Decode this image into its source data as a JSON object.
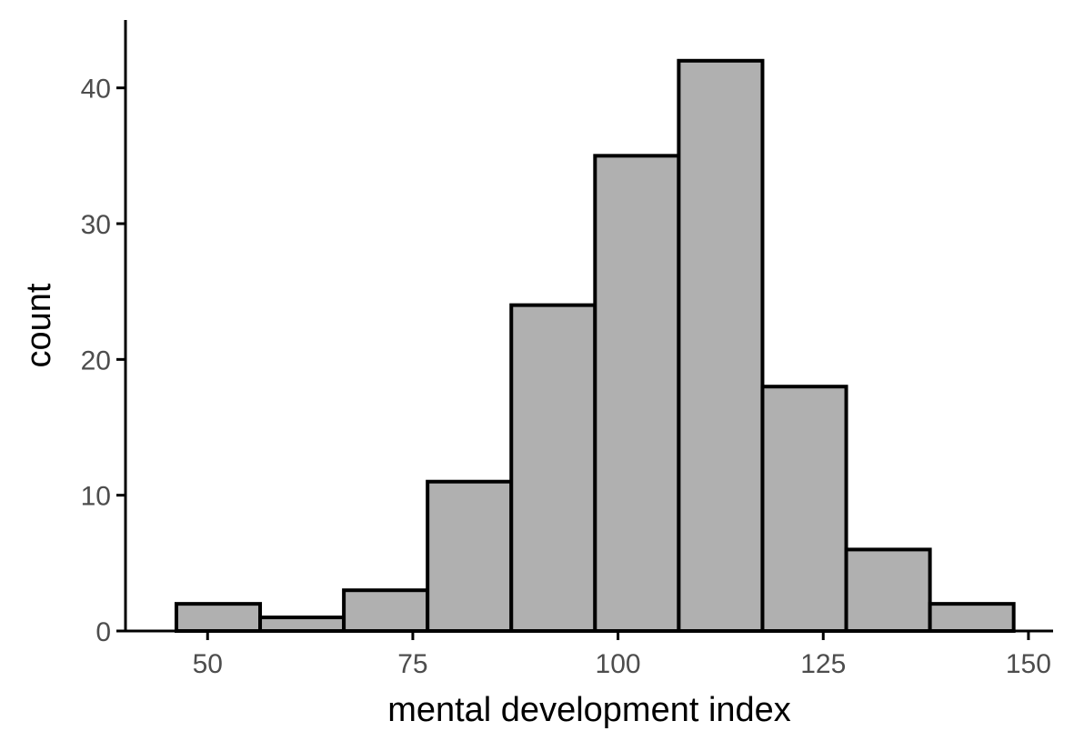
{
  "chart_data": {
    "type": "bar",
    "subtype": "histogram",
    "title": "",
    "xlabel": "mental development index",
    "ylabel": "count",
    "bins": [
      {
        "x0": 46.2,
        "x1": 56.4,
        "count": 2
      },
      {
        "x0": 56.4,
        "x1": 66.6,
        "count": 1
      },
      {
        "x0": 66.6,
        "x1": 76.8,
        "count": 3
      },
      {
        "x0": 76.8,
        "x1": 87.0,
        "count": 11
      },
      {
        "x0": 87.0,
        "x1": 97.2,
        "count": 24
      },
      {
        "x0": 97.2,
        "x1": 107.4,
        "count": 35
      },
      {
        "x0": 107.4,
        "x1": 117.6,
        "count": 42
      },
      {
        "x0": 117.6,
        "x1": 127.8,
        "count": 18
      },
      {
        "x0": 127.8,
        "x1": 138.0,
        "count": 6
      },
      {
        "x0": 138.0,
        "x1": 148.2,
        "count": 2
      }
    ],
    "xlim": [
      40,
      153
    ],
    "ylim": [
      0,
      45
    ],
    "xticks": [
      50,
      75,
      100,
      125,
      150
    ],
    "xtick_labels": [
      "50",
      "75",
      "100",
      "125",
      "150"
    ],
    "yticks": [
      0,
      10,
      20,
      30,
      40
    ],
    "ytick_labels": [
      "0",
      "10",
      "20",
      "30",
      "40"
    ],
    "grid": false,
    "legend": "none",
    "colors": {
      "bar_fill": "#b0b0b0",
      "bar_stroke": "#000000",
      "axis": "#000000",
      "tick_text": "#4d4d4d"
    }
  }
}
